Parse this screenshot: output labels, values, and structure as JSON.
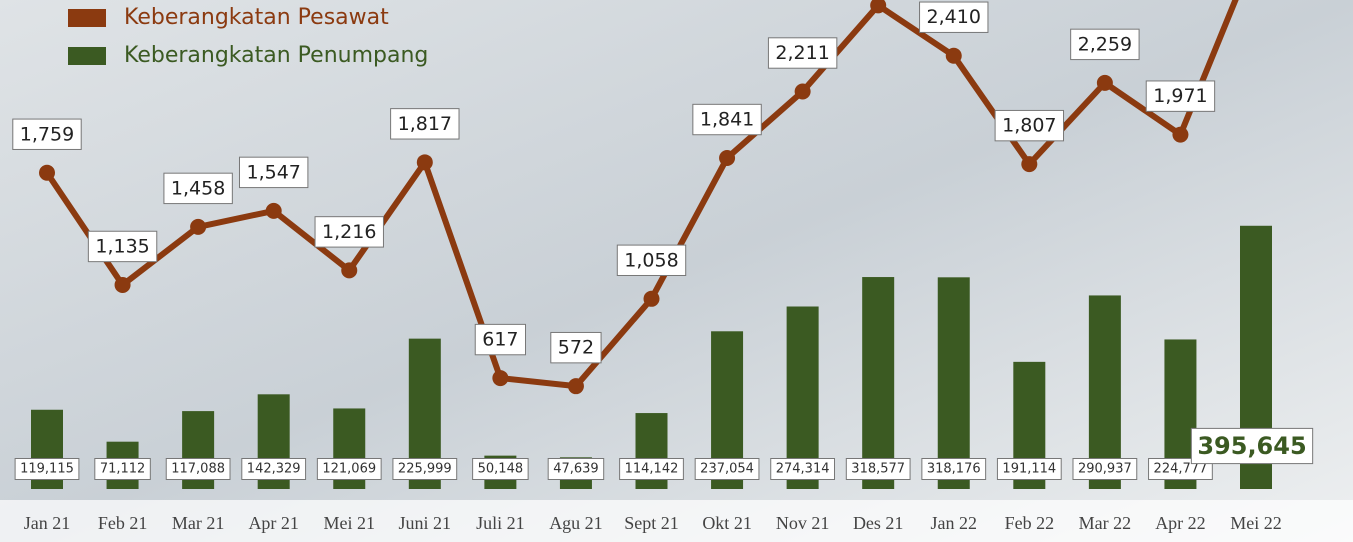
{
  "chart_data": {
    "type": "bar",
    "categories": [
      "Jan 21",
      "Feb 21",
      "Mar 21",
      "Apr 21",
      "Mei 21",
      "Juni 21",
      "Juli 21",
      "Agu 21",
      "Sept 21",
      "Okt 21",
      "Nov 21",
      "Des 21",
      "Jan 22",
      "Feb 22",
      "Mar 22",
      "Apr 22",
      "Mei 22"
    ],
    "series": [
      {
        "name": "Keberangkatan Pesawat",
        "type": "line",
        "axis": "y2",
        "color": "#8b3a10",
        "values": [
          1759,
          1135,
          1458,
          1547,
          1216,
          1817,
          617,
          572,
          1058,
          1841,
          2211,
          2690,
          2410,
          1807,
          2259,
          1971,
          3000
        ],
        "value_labels": [
          "1,759",
          "1,135",
          "1,458",
          "1,547",
          "1,216",
          "1,817",
          "617",
          "572",
          "1,058",
          "1,841",
          "2,211",
          null,
          "2,410",
          "1,807",
          "2,259",
          "1,971",
          null
        ]
      },
      {
        "name": "Keberangkatan Penumpang",
        "type": "bar",
        "axis": "y",
        "color": "#3b5a22",
        "values": [
          119115,
          71112,
          117088,
          142329,
          121069,
          225999,
          50148,
          47639,
          114142,
          237054,
          274314,
          318577,
          318176,
          191114,
          290937,
          224777,
          395645
        ],
        "value_labels": [
          "119,115",
          "71,112",
          "117,088",
          "142,329",
          "121,069",
          "225,999",
          "50,148",
          "47,639",
          "114,142",
          "237,054",
          "274,314",
          "318,577",
          "318,176",
          "191,114",
          "290,937",
          "224,777",
          "395,645"
        ]
      }
    ],
    "ylim": [
      0,
      735000
    ],
    "y2lim": [
      0,
      2720
    ],
    "legend": "top-left"
  }
}
